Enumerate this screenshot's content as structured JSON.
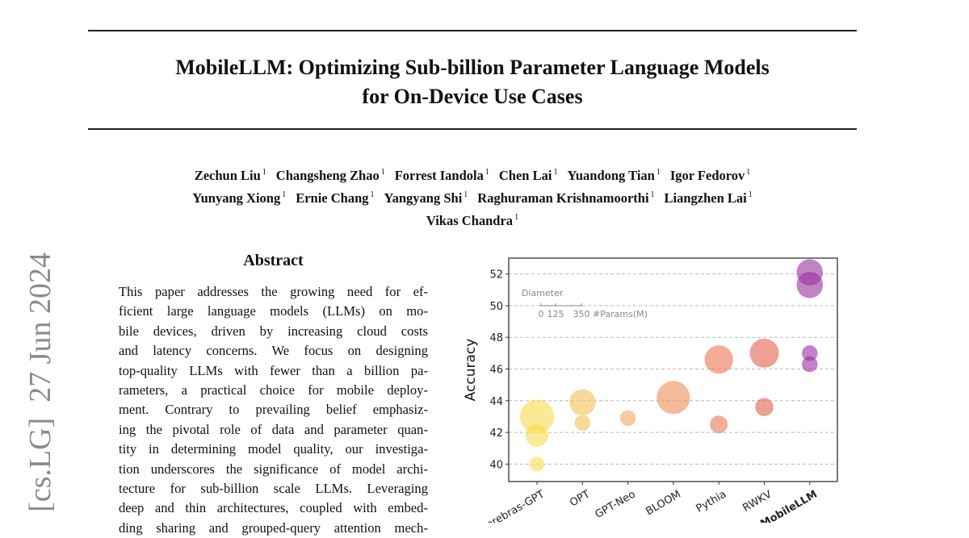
{
  "paper": {
    "title_lines": [
      "MobileLLM: Optimizing Sub-billion Parameter Language Models",
      "for On-Device Use Cases"
    ],
    "authors": [
      [
        {
          "name": "Zechun Liu",
          "aff": "1"
        },
        {
          "name": "Changsheng Zhao",
          "aff": "1"
        },
        {
          "name": "Forrest Iandola",
          "aff": "1"
        },
        {
          "name": "Chen Lai",
          "aff": "1"
        },
        {
          "name": "Yuandong Tian",
          "aff": "1"
        },
        {
          "name": "Igor Fedorov",
          "aff": "1"
        }
      ],
      [
        {
          "name": "Yunyang Xiong",
          "aff": "1"
        },
        {
          "name": "Ernie Chang",
          "aff": "1"
        },
        {
          "name": "Yangyang Shi",
          "aff": "1"
        },
        {
          "name": "Raghuraman Krishnamoorthi",
          "aff": "1"
        },
        {
          "name": "Liangzhen Lai",
          "aff": "1"
        }
      ],
      [
        {
          "name": "Vikas Chandra",
          "aff": "1"
        }
      ]
    ],
    "arxiv_stamp": "[cs.LG]  27 Jun 2024",
    "abstract_heading": "Abstract",
    "abstract_lines": [
      "This paper addresses the growing need for ef-",
      "ficient large language models (LLMs) on mo-",
      "bile devices, driven by increasing cloud costs",
      "and latency concerns.  We focus on designing",
      "top-quality LLMs with fewer than a billion pa-",
      "rameters, a practical choice for mobile deploy-",
      "ment.  Contrary to prevailing belief emphasiz-",
      "ing the pivotal role of data and parameter quan-",
      "tity in determining model quality, our investiga-",
      "tion underscores the significance of model archi-",
      "tecture for sub-billion scale LLMs.  Leveraging",
      "deep and thin architectures, coupled with embed-",
      "ding sharing and grouped-query attention mech-"
    ]
  },
  "chart_data": {
    "type": "scatter",
    "ylabel": "Accuracy",
    "xlabel": "",
    "ylim": [
      38.9,
      53.0
    ],
    "yticks": [
      40,
      42,
      44,
      46,
      48,
      50,
      52
    ],
    "grid": "horizontal dashed",
    "categories": [
      "Cerebras-GPT",
      "OPT",
      "GPT-Neo",
      "BLOOM",
      "Pythia",
      "RWKV",
      "MobileLLM"
    ],
    "highlight_category": "MobileLLM",
    "size_legend": {
      "title": "Diameter",
      "ticks": [
        "0",
        "125",
        "350"
      ],
      "unit_label": "#Params(M)"
    },
    "colors": {
      "Cerebras-GPT": "#f8dc4c",
      "OPT": "#f5bf55",
      "GPT-Neo": "#f4a85e",
      "BLOOM": "#ef8d55",
      "Pythia": "#ec7452",
      "RWKV": "#e4614e",
      "MobileLLM": "#9a2ea0"
    },
    "points": [
      {
        "category": "Cerebras-GPT",
        "accuracy": 43.0,
        "params_m": 590
      },
      {
        "category": "Cerebras-GPT",
        "accuracy": 41.8,
        "params_m": 256
      },
      {
        "category": "Cerebras-GPT",
        "accuracy": 40.0,
        "params_m": 111
      },
      {
        "category": "OPT",
        "accuracy": 43.9,
        "params_m": 350
      },
      {
        "category": "OPT",
        "accuracy": 42.6,
        "params_m": 125
      },
      {
        "category": "GPT-Neo",
        "accuracy": 42.9,
        "params_m": 125
      },
      {
        "category": "BLOOM",
        "accuracy": 44.2,
        "params_m": 560
      },
      {
        "category": "Pythia",
        "accuracy": 46.6,
        "params_m": 410
      },
      {
        "category": "Pythia",
        "accuracy": 42.5,
        "params_m": 160
      },
      {
        "category": "RWKV",
        "accuracy": 47.0,
        "params_m": 430
      },
      {
        "category": "RWKV",
        "accuracy": 43.6,
        "params_m": 169
      },
      {
        "category": "MobileLLM",
        "accuracy": 52.1,
        "params_m": 350
      },
      {
        "category": "MobileLLM",
        "accuracy": 51.3,
        "params_m": 350
      },
      {
        "category": "MobileLLM",
        "accuracy": 47.0,
        "params_m": 125
      },
      {
        "category": "MobileLLM",
        "accuracy": 46.3,
        "params_m": 125
      }
    ]
  }
}
